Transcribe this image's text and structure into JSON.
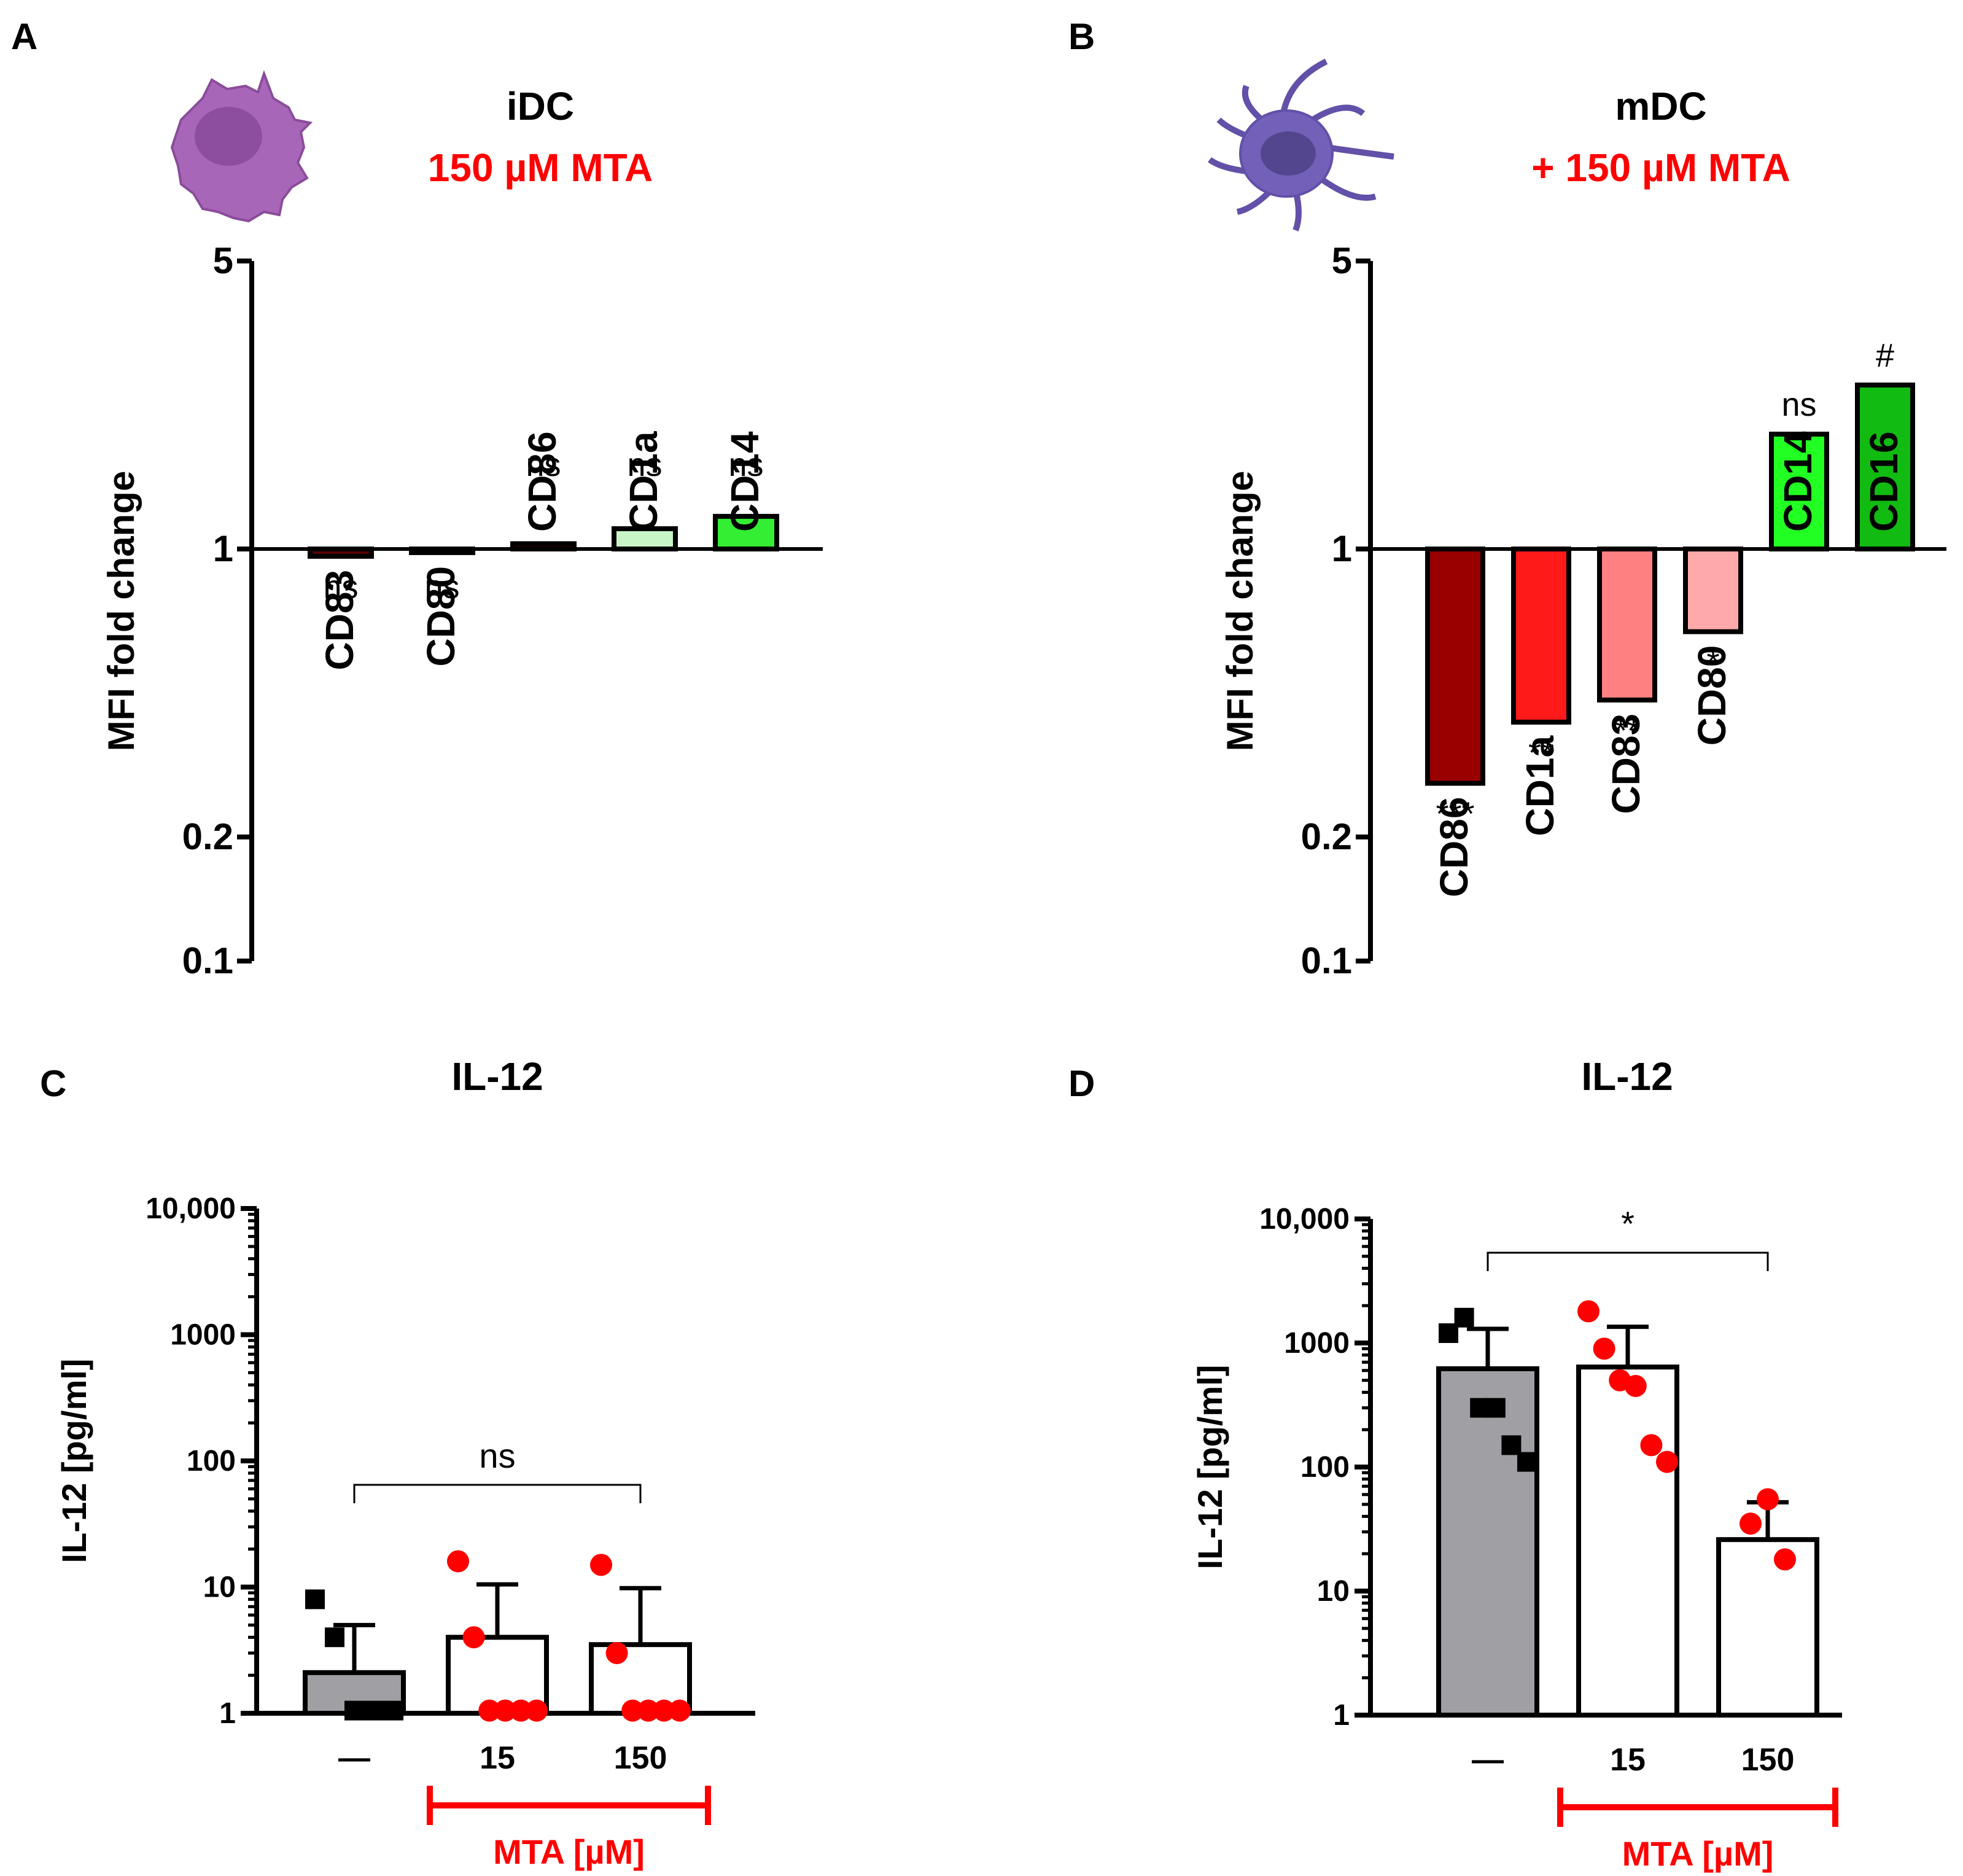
{
  "colors": {
    "red": "#ff0000",
    "black": "#000000",
    "gray_bar": "#a0a0a4",
    "dark_red": "#990000",
    "red_bar": "#ff1a1a",
    "salmon": "#ff8080",
    "light_salmon": "#ffaaaa",
    "light_green": "#c8f5c8",
    "green": "#33ee33",
    "bright_green": "#22ff22",
    "dark_green": "#11bb11",
    "cell_purple": "#a866b8",
    "cell_blue": "#7360b8"
  },
  "icons": {
    "panel_a": "dendritic-cell-icon",
    "panel_b": "mature-dendritic-cell-icon"
  },
  "chart_data": [
    {
      "panel": "A",
      "type": "bar",
      "title": "iDC",
      "subtitle": "150 µM MTA",
      "ylabel": "MFI fold change",
      "yscale": "log",
      "ylim": [
        0.1,
        5
      ],
      "baseline": 1,
      "yticks": [
        {
          "value": 0.1,
          "label": "0.1"
        },
        {
          "value": 0.2,
          "label": "0.2"
        },
        {
          "value": 1,
          "label": "1"
        },
        {
          "value": 5,
          "label": "5"
        }
      ],
      "bars": [
        {
          "label": "CD83",
          "value": 0.96,
          "sig": "ns",
          "color": "#5a0000"
        },
        {
          "label": "CD80",
          "value": 0.98,
          "sig": "ns",
          "color": "#5a0000"
        },
        {
          "label": "CD86",
          "value": 1.03,
          "sig": "ns",
          "color": "#5a0000"
        },
        {
          "label": "CD1a",
          "value": 1.12,
          "sig": "ns",
          "color": "#c8f5c8"
        },
        {
          "label": "CD14",
          "value": 1.2,
          "sig": "ns",
          "color": "#33ee33"
        }
      ]
    },
    {
      "panel": "B",
      "type": "bar",
      "title": "mDC",
      "subtitle": "+ 150 µM  MTA",
      "ylabel": "MFI fold change",
      "yscale": "log",
      "ylim": [
        0.1,
        5
      ],
      "baseline": 1,
      "yticks": [
        {
          "value": 0.1,
          "label": "0.1"
        },
        {
          "value": 0.2,
          "label": "0.2"
        },
        {
          "value": 1,
          "label": "1"
        },
        {
          "value": 5,
          "label": "5"
        }
      ],
      "bars": [
        {
          "label": "CD86",
          "value": 0.27,
          "sig": "***",
          "color": "#990000"
        },
        {
          "label": "CD1a",
          "value": 0.38,
          "sig": "**",
          "color": "#ff1a1a"
        },
        {
          "label": "CD83",
          "value": 0.43,
          "sig": "**",
          "color": "#ff8080"
        },
        {
          "label": "CD80",
          "value": 0.63,
          "sig": "*",
          "color": "#ffaaaa"
        },
        {
          "label": "CD14",
          "value": 1.9,
          "sig": "ns",
          "color": "#22ff22"
        },
        {
          "label": "CD16",
          "value": 2.5,
          "sig": "#",
          "color": "#11bb11"
        }
      ]
    },
    {
      "panel": "C",
      "type": "bar",
      "title": "IL-12",
      "ylabel": "IL-12 [pg/ml]",
      "yscale": "log",
      "ylim": [
        1,
        10000
      ],
      "yticks": [
        {
          "value": 1,
          "label": "1"
        },
        {
          "value": 10,
          "label": "10"
        },
        {
          "value": 100,
          "label": "100"
        },
        {
          "value": 1000,
          "label": "1000"
        },
        {
          "value": 10000,
          "label": "10,000"
        }
      ],
      "categories": [
        "—",
        "15",
        "150"
      ],
      "means": [
        2.1,
        4.0,
        3.5
      ],
      "errors_upper": [
        5.0,
        10.5,
        9.8
      ],
      "points": [
        [
          8.0,
          4.0,
          1.05,
          1.05,
          1.05
        ],
        [
          16.0,
          4.0,
          1.05,
          1.05,
          1.05,
          1.05
        ],
        [
          15.0,
          3.0,
          1.05,
          1.05,
          1.05,
          1.05
        ]
      ],
      "marker_colors": [
        "#000000",
        "#ff0000",
        "#ff0000"
      ],
      "bar_fills": [
        "#a0a0a4",
        "#ffffff",
        "#ffffff"
      ],
      "significance": {
        "label": "ns",
        "from": 0,
        "to": 2
      },
      "group_label": "MTA [µM]"
    },
    {
      "panel": "D",
      "type": "bar",
      "title": "IL-12",
      "ylabel": "IL-12 [pg/ml]",
      "yscale": "log",
      "ylim": [
        1,
        10000
      ],
      "yticks": [
        {
          "value": 1,
          "label": "1"
        },
        {
          "value": 10,
          "label": "10"
        },
        {
          "value": 100,
          "label": "100"
        },
        {
          "value": 1000,
          "label": "1000"
        },
        {
          "value": 10000,
          "label": "10,000"
        }
      ],
      "categories": [
        "—",
        "15",
        "150"
      ],
      "means": [
        620,
        640,
        26
      ],
      "errors_upper": [
        1300,
        1350,
        52
      ],
      "points": [
        [
          1200,
          1600,
          300,
          300,
          150,
          110
        ],
        [
          1800,
          900,
          500,
          450,
          150,
          110
        ],
        [
          55,
          35,
          18
        ]
      ],
      "marker_colors": [
        "#000000",
        "#ff0000",
        "#ff0000"
      ],
      "bar_fills": [
        "#a0a0a4",
        "#ffffff",
        "#ffffff"
      ],
      "significance": {
        "label": "*",
        "from": 0,
        "to": 2
      },
      "group_label": "MTA [µM]"
    }
  ]
}
